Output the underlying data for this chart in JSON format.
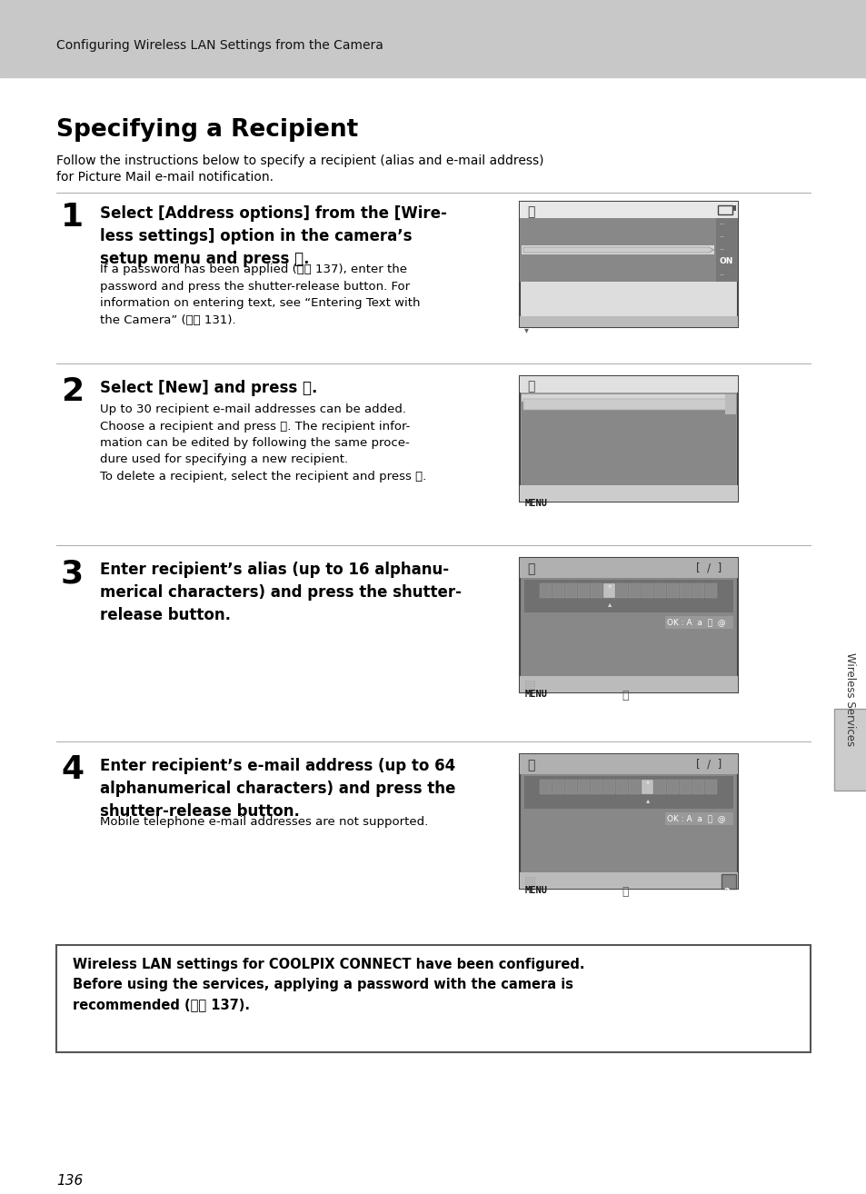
{
  "page_bg": "#ffffff",
  "header_bg": "#cccccc",
  "header_text": "Configuring Wireless LAN Settings from the Camera",
  "title": "Specifying a Recipient",
  "intro_line1": "Follow the instructions below to specify a recipient (alias and e-mail address)",
  "intro_line2": "for Picture Mail e-mail notification.",
  "step1_bold": "Select [Address options] from the [Wire-\nless settings] option in the camera’s\nsetup menu and press ⒪.",
  "step1_body": "If a password has been applied (ⓑⓑ 137), enter the\npassword and press the shutter-release button. For\ninformation on entering text, see “Entering Text with\nthe Camera” (ⓑⓑ 131).",
  "step2_bold": "Select [New] and press ⒪.",
  "step2_body": "Up to 30 recipient e-mail addresses can be added.\nChoose a recipient and press ⒪. The recipient infor-\nmation can be edited by following the same proce-\ndure used for specifying a new recipient.\nTo delete a recipient, select the recipient and press ⓔ.",
  "step3_bold": "Enter recipient’s alias (up to 16 alphanu-\nmerical characters) and press the shutter-\nrelease button.",
  "step3_body": "",
  "step4_bold": "Enter recipient’s e-mail address (up to 64\nalphanumerical characters) and press the\nshutter-release button.",
  "step4_body": "Mobile telephone e-mail addresses are not supported.",
  "note_line1": "Wireless LAN settings for COOLPIX CONNECT have been configured.",
  "note_line2": "Before using the services, applying a password with the camera is",
  "note_line3": "recommended (ⓑⓑ 137).",
  "page_num": "136",
  "side_label": "Wireless Services"
}
